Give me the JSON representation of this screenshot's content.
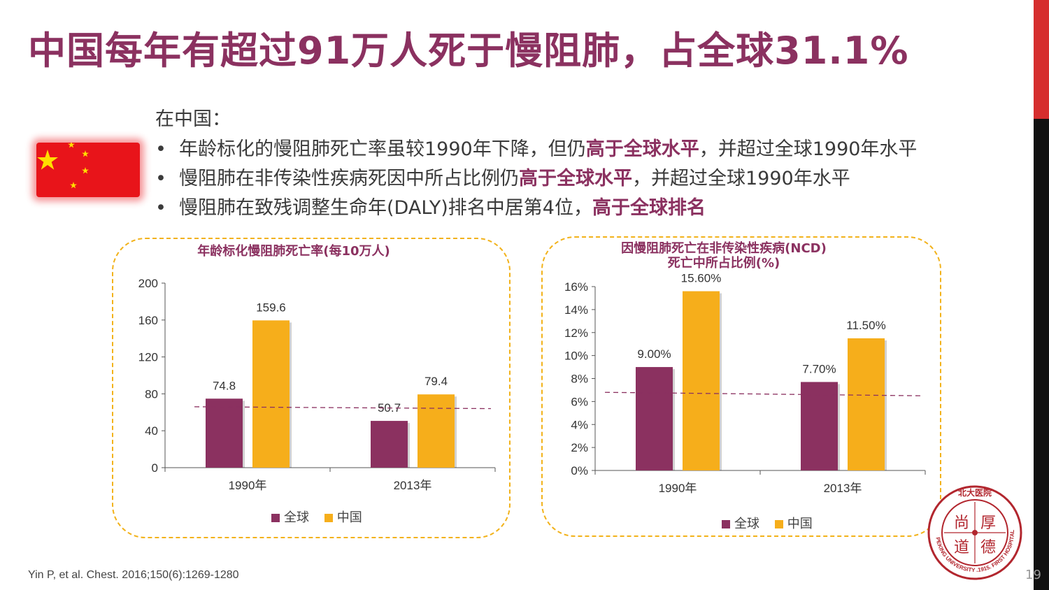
{
  "title": "中国每年有超过91万人死于慢阻肺，占全球31.1%",
  "intro": "在中国：",
  "bullets": [
    {
      "pre": "年龄标化的慢阻肺死亡率虽较1990年下降，但仍",
      "bold": "高于全球水平",
      "post": "，并超过全球1990年水平"
    },
    {
      "pre": "慢阻肺在非传染性疾病死因中所占比例仍",
      "bold": "高于全球水平",
      "post": "，并超过全球1990年水平"
    },
    {
      "pre": "慢阻肺在致残调整生命年(DALY)排名中居第4位，",
      "bold": "高于全球排名",
      "post": ""
    }
  ],
  "bullet_char": "•",
  "colors": {
    "global": "#8b3160",
    "china": "#f6ae1b",
    "accent": "#8b3160",
    "panel_border": "#f2b21a"
  },
  "chart_data": [
    {
      "type": "bar",
      "title": "年龄标化慢阻肺死亡率(每10万人)",
      "categories": [
        "1990年",
        "2013年"
      ],
      "series": [
        {
          "name": "全球",
          "values": [
            74.8,
            50.7
          ],
          "labels": [
            "74.8",
            "50.7"
          ]
        },
        {
          "name": "中国",
          "values": [
            159.6,
            79.4
          ],
          "labels": [
            "159.6",
            "79.4"
          ]
        }
      ],
      "ylim": [
        0,
        200
      ],
      "yticks": [
        "0",
        "40",
        "80",
        "120",
        "160",
        "200"
      ],
      "reference_line": {
        "style": "dashed",
        "from": 66,
        "to": 64
      }
    },
    {
      "type": "bar",
      "title": "因慢阻肺死亡在非传染性疾病(NCD)\n死亡中所占比例(%)",
      "categories": [
        "1990年",
        "2013年"
      ],
      "series": [
        {
          "name": "全球",
          "values": [
            9.0,
            7.7
          ],
          "labels": [
            "9.00%",
            "7.70%"
          ]
        },
        {
          "name": "中国",
          "values": [
            15.6,
            11.5
          ],
          "labels": [
            "15.60%",
            "11.50%"
          ]
        }
      ],
      "ylim": [
        0,
        16
      ],
      "yticks": [
        "0%",
        "2%",
        "4%",
        "6%",
        "8%",
        "10%",
        "12%",
        "14%",
        "16%"
      ],
      "reference_line": {
        "style": "dashed",
        "from": 6.8,
        "to": 6.5
      }
    }
  ],
  "legend": {
    "global": "全球",
    "china": "中国"
  },
  "source": "Yin P, et al. Chest. 2016;150(6):1269-1280",
  "page_number": "19",
  "seal": {
    "top_text": "北大医院",
    "ring_text": "PEKING UNIVERSITY .1915. FIRST HOSPITAL",
    "chars": [
      "尚",
      "厚",
      "道",
      "德"
    ]
  }
}
